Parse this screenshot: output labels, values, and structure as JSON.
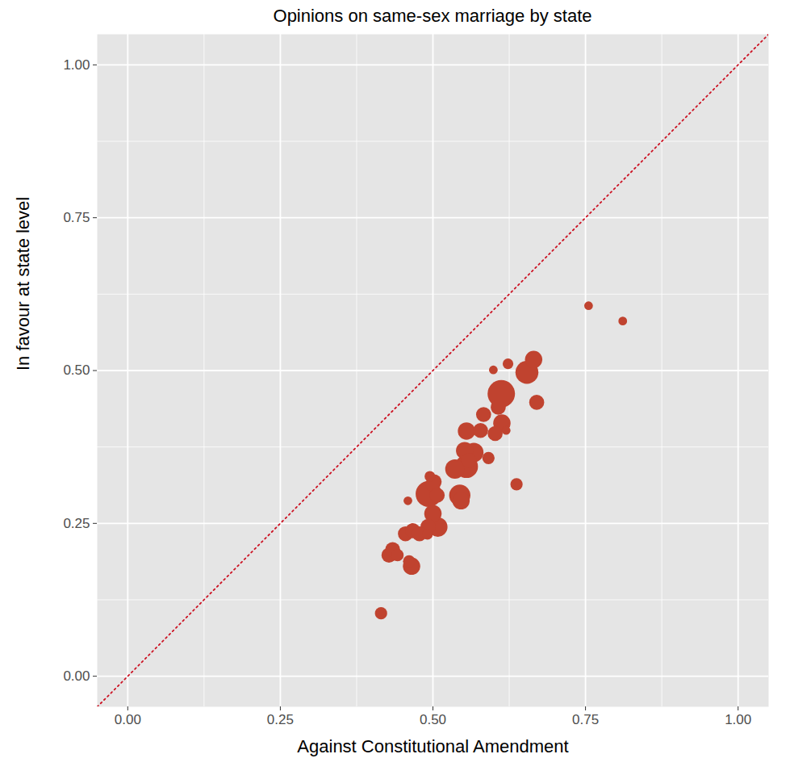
{
  "chart_data": {
    "type": "scatter",
    "title": "Opinions on same-sex marriage by state",
    "x_label": "Against Constitutional Amendment",
    "y_label": "In favour at state level",
    "x": [
      0.755,
      0.811,
      0.665,
      0.654,
      0.623,
      0.599,
      0.612,
      0.607,
      0.613,
      0.62,
      0.67,
      0.583,
      0.602,
      0.555,
      0.578,
      0.552,
      0.567,
      0.591,
      0.559,
      0.555,
      0.536,
      0.637,
      0.495,
      0.502,
      0.5,
      0.493,
      0.507,
      0.544,
      0.546,
      0.459,
      0.5,
      0.492,
      0.508,
      0.455,
      0.467,
      0.478,
      0.491,
      0.428,
      0.434,
      0.442,
      0.461,
      0.465,
      0.415
    ],
    "y": [
      0.606,
      0.581,
      0.518,
      0.497,
      0.511,
      0.501,
      0.462,
      0.44,
      0.414,
      0.402,
      0.448,
      0.428,
      0.397,
      0.401,
      0.402,
      0.369,
      0.366,
      0.357,
      0.353,
      0.343,
      0.339,
      0.314,
      0.327,
      0.318,
      0.314,
      0.298,
      0.296,
      0.296,
      0.287,
      0.287,
      0.266,
      0.245,
      0.244,
      0.233,
      0.238,
      0.233,
      0.232,
      0.198,
      0.207,
      0.198,
      0.188,
      0.18,
      0.103
    ],
    "size": [
      1,
      1,
      4,
      7,
      1.5,
      1,
      10,
      3,
      4,
      1,
      3,
      3,
      3,
      4,
      3,
      4,
      5,
      2,
      3,
      7,
      5,
      2,
      1.5,
      3,
      3,
      9,
      3,
      6,
      4,
      1,
      4,
      3,
      5,
      3,
      3,
      3,
      1.5,
      3,
      3,
      2,
      2,
      4,
      2
    ],
    "color": "#c0432f",
    "xlim": [
      -0.05,
      1.05
    ],
    "ylim": [
      -0.05,
      1.05
    ],
    "xticks": [
      {
        "value": 0,
        "label": "0.00"
      },
      {
        "value": 0.25,
        "label": "0.25"
      },
      {
        "value": 0.5,
        "label": "0.50"
      },
      {
        "value": 0.75,
        "label": "0.75"
      },
      {
        "value": 1,
        "label": "1.00"
      }
    ],
    "yticks": [
      {
        "value": 0,
        "label": "0.00"
      },
      {
        "value": 0.25,
        "label": "0.25"
      },
      {
        "value": 0.5,
        "label": "0.50"
      },
      {
        "value": 0.75,
        "label": "0.75"
      },
      {
        "value": 1,
        "label": "1.00"
      }
    ],
    "grid": true,
    "reference_line": {
      "x": [
        -0.05,
        1.05
      ],
      "y": [
        -0.05,
        1.05
      ],
      "color": "#cc1122",
      "line_style": "dotted"
    }
  }
}
